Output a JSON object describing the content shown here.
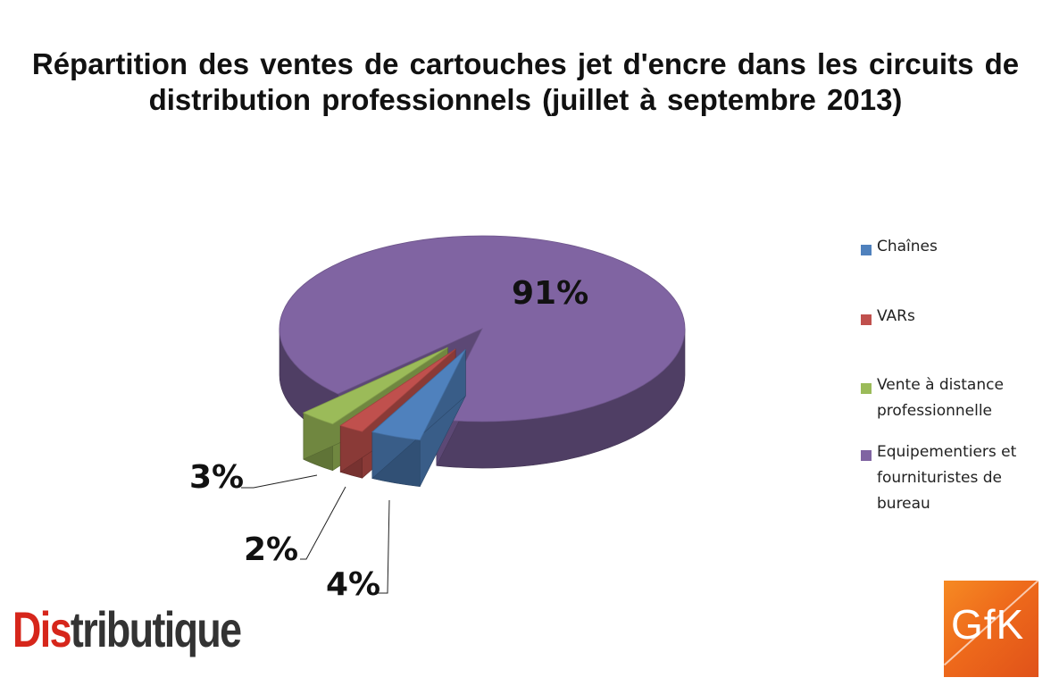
{
  "chart_data": {
    "type": "pie",
    "title": "Répartition des ventes de cartouches jet d'encre dans les circuits de distribution professionnels (juillet à septembre 2013)",
    "categories": [
      "Chaînes",
      "VARs",
      "Vente à distance professionnelle",
      "Equipementiers et fournituristes de bureau"
    ],
    "values": [
      4,
      2,
      3,
      91
    ],
    "data_labels": [
      "4%",
      "2%",
      "3%",
      "91%"
    ],
    "colors": [
      "#4f81bd",
      "#c0504d",
      "#9bbb59",
      "#8064a2"
    ],
    "legend_position": "right",
    "exploded": [
      true,
      true,
      true,
      false
    ],
    "style": "3d"
  },
  "legend": {
    "items": [
      {
        "label": "Chaînes",
        "color": "#4f81bd"
      },
      {
        "label": "VARs",
        "color": "#c0504d"
      },
      {
        "label": "Vente à distance professionnelle",
        "color": "#9bbb59"
      },
      {
        "label": "Equipementiers et fournituristes de bureau",
        "color": "#8064a2"
      }
    ]
  },
  "branding": {
    "distributique_first": "Dis",
    "distributique_rest": "tributique",
    "gfk": "GfK"
  }
}
